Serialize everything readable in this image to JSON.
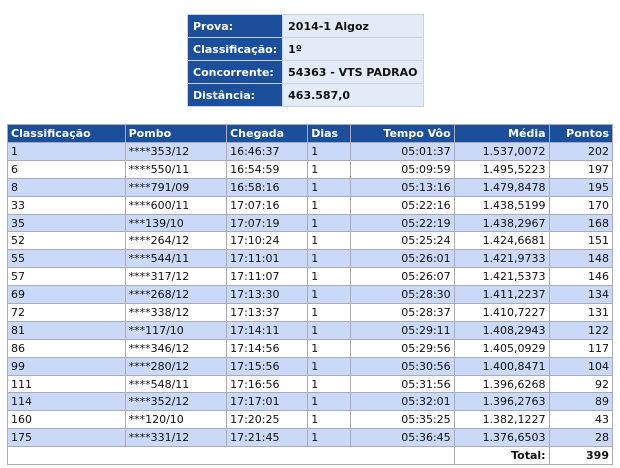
{
  "info": {
    "rows": [
      [
        "Prova:",
        "2014-1 Algoz"
      ],
      [
        "Classificação:",
        "1º"
      ],
      [
        "Concorrente:",
        "54363 - VTS PADRAO"
      ],
      [
        "Distância:",
        "463.587,0"
      ]
    ]
  },
  "table": {
    "headers": [
      "Classificação",
      "Pombo",
      "Chegada",
      "Dias",
      "Tempo Vôo",
      "Média",
      "Pontos"
    ],
    "rows": [
      [
        "1",
        "****353/12",
        "16:46:37",
        "1",
        "05:01:37",
        "1.537,0072",
        "202"
      ],
      [
        "6",
        "****550/11",
        "16:54:59",
        "1",
        "05:09:59",
        "1.495,5223",
        "197"
      ],
      [
        "8",
        "****791/09",
        "16:58:16",
        "1",
        "05:13:16",
        "1.479,8478",
        "195"
      ],
      [
        "33",
        "****600/11",
        "17:07:16",
        "1",
        "05:22:16",
        "1.438,5199",
        "170"
      ],
      [
        "35",
        "***139/10",
        "17:07:19",
        "1",
        "05:22:19",
        "1.438,2967",
        "168"
      ],
      [
        "52",
        "****264/12",
        "17:10:24",
        "1",
        "05:25:24",
        "1.424,6681",
        "151"
      ],
      [
        "55",
        "****544/11",
        "17:11:01",
        "1",
        "05:26:01",
        "1.421,9733",
        "148"
      ],
      [
        "57",
        "****317/12",
        "17:11:07",
        "1",
        "05:26:07",
        "1.421,5373",
        "146"
      ],
      [
        "69",
        "****268/12",
        "17:13:30",
        "1",
        "05:28:30",
        "1.411,2237",
        "134"
      ],
      [
        "72",
        "****338/12",
        "17:13:37",
        "1",
        "05:28:37",
        "1.410,7227",
        "131"
      ],
      [
        "81",
        "***117/10",
        "17:14:11",
        "1",
        "05:29:11",
        "1.408,2943",
        "122"
      ],
      [
        "86",
        "****346/12",
        "17:14:56",
        "1",
        "05:29:56",
        "1.405,0929",
        "117"
      ],
      [
        "99",
        "****280/12",
        "17:15:56",
        "1",
        "05:30:56",
        "1.400,8471",
        "104"
      ],
      [
        "111",
        "****548/11",
        "17:16:56",
        "1",
        "05:31:56",
        "1.396,6268",
        "92"
      ],
      [
        "114",
        "****352/12",
        "17:17:01",
        "1",
        "05:32:01",
        "1.396,2763",
        "89"
      ],
      [
        "160",
        "***120/10",
        "17:20:25",
        "1",
        "05:35:25",
        "1.382,1227",
        "43"
      ],
      [
        "175",
        "****331/12",
        "17:21:45",
        "1",
        "05:36:45",
        "1.376,6503",
        "28"
      ]
    ],
    "total_label": "Total:",
    "total": "399"
  }
}
